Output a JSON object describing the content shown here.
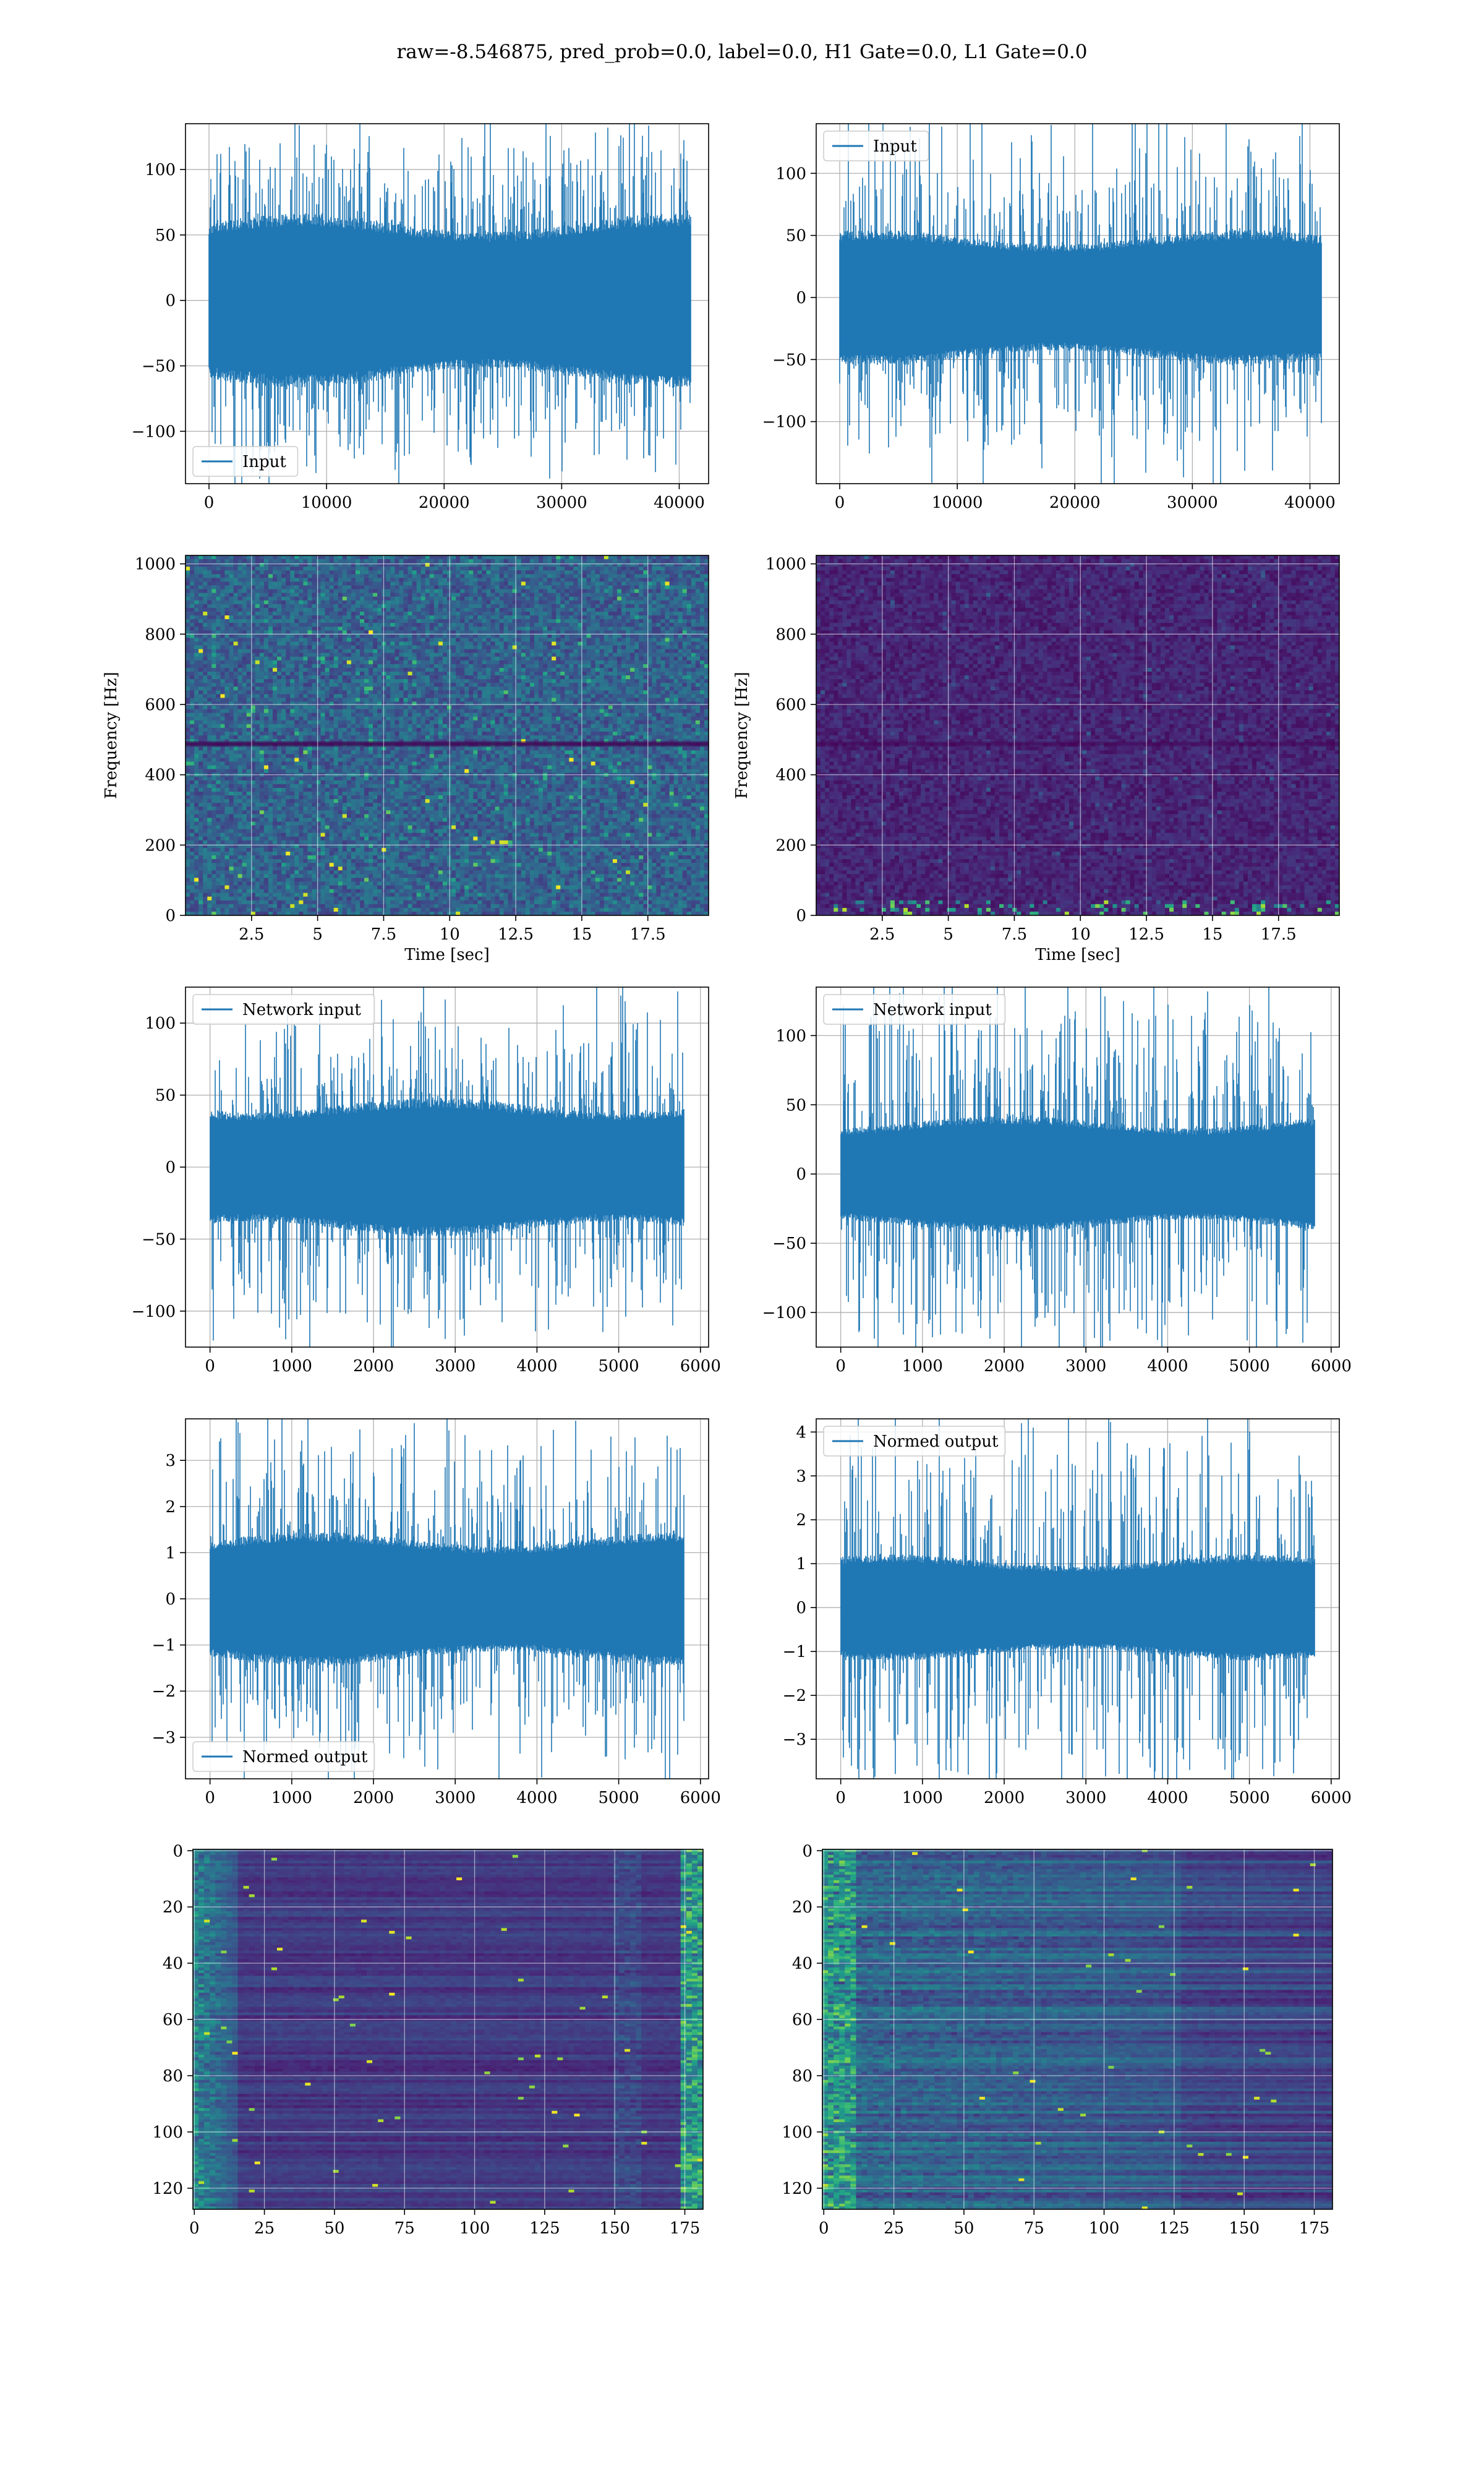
{
  "figure": {
    "title": "raw=-8.546875, pred_prob=0.0, label=0.0, H1 Gate=0.0, L1 Gate=0.0",
    "colors": {
      "line": "#1f77b4",
      "grid": "#b0b0b0",
      "axes": "#000000",
      "viridis": [
        "#440154",
        "#482878",
        "#3e4a89",
        "#31688e",
        "#26828e",
        "#1f9e89",
        "#35b779",
        "#6ece58",
        "#b5de2b",
        "#fde725"
      ]
    }
  },
  "chart_data": [
    {
      "id": "p1",
      "type": "line",
      "series": [
        {
          "name": "Input"
        }
      ],
      "legend_loc": "lower-left",
      "xlim": [
        -2000,
        42500
      ],
      "ylim": [
        -140,
        135
      ],
      "xticks": [
        0,
        10000,
        20000,
        30000,
        40000
      ],
      "yticks": [
        -100,
        -50,
        0,
        50,
        100
      ],
      "x_range": [
        0,
        41000
      ],
      "amplitude": {
        "band": 55,
        "peak": 120
      },
      "grid": true,
      "xlabel": "",
      "ylabel": ""
    },
    {
      "id": "p2",
      "type": "line",
      "series": [
        {
          "name": "Input"
        }
      ],
      "legend_loc": "upper-left",
      "xlim": [
        -2000,
        42500
      ],
      "ylim": [
        -150,
        140
      ],
      "xticks": [
        0,
        10000,
        20000,
        30000,
        40000
      ],
      "yticks": [
        -100,
        -50,
        0,
        50,
        100
      ],
      "x_range": [
        0,
        41000
      ],
      "amplitude": {
        "band": 45,
        "peak": 125
      },
      "grid": true,
      "xlabel": "",
      "ylabel": ""
    },
    {
      "id": "p3",
      "type": "heatmap",
      "variant": "spectrogram-bright",
      "xlim": [
        0,
        19.8
      ],
      "ylim": [
        0,
        1024
      ],
      "xticks": [
        2.5,
        5.0,
        7.5,
        10.0,
        12.5,
        15.0,
        17.5
      ],
      "yticks": [
        0,
        200,
        400,
        600,
        800,
        1000
      ],
      "xlabel": "Time [sec]",
      "ylabel": "Frequency [Hz]",
      "grid": true
    },
    {
      "id": "p4",
      "type": "heatmap",
      "variant": "spectrogram-dark",
      "xlim": [
        0,
        19.8
      ],
      "ylim": [
        0,
        1024
      ],
      "xticks": [
        2.5,
        5.0,
        7.5,
        10.0,
        12.5,
        15.0,
        17.5
      ],
      "yticks": [
        0,
        200,
        400,
        600,
        800,
        1000
      ],
      "xlabel": "Time [sec]",
      "ylabel": "Frequency [Hz]",
      "grid": true
    },
    {
      "id": "p5",
      "type": "line",
      "series": [
        {
          "name": "Network input"
        }
      ],
      "legend_loc": "upper-left",
      "xlim": [
        -300,
        6100
      ],
      "ylim": [
        -125,
        125
      ],
      "xticks": [
        0,
        1000,
        2000,
        3000,
        4000,
        5000,
        6000
      ],
      "yticks": [
        -100,
        -50,
        0,
        50,
        100
      ],
      "x_range": [
        0,
        5800
      ],
      "amplitude": {
        "band": 40,
        "peak": 105
      },
      "grid": true,
      "xlabel": "",
      "ylabel": ""
    },
    {
      "id": "p6",
      "type": "line",
      "series": [
        {
          "name": "Network input"
        }
      ],
      "legend_loc": "upper-left",
      "xlim": [
        -300,
        6100
      ],
      "ylim": [
        -125,
        135
      ],
      "xticks": [
        0,
        1000,
        2000,
        3000,
        4000,
        5000,
        6000
      ],
      "yticks": [
        -100,
        -50,
        0,
        50,
        100
      ],
      "x_range": [
        0,
        5800
      ],
      "amplitude": {
        "band": 35,
        "peak": 120
      },
      "grid": true,
      "xlabel": "",
      "ylabel": ""
    },
    {
      "id": "p7",
      "type": "line",
      "series": [
        {
          "name": "Normed output"
        }
      ],
      "legend_loc": "lower-left",
      "xlim": [
        -300,
        6100
      ],
      "ylim": [
        -3.9,
        3.9
      ],
      "xticks": [
        0,
        1000,
        2000,
        3000,
        4000,
        5000,
        6000
      ],
      "yticks": [
        -3,
        -2,
        -1,
        0,
        1,
        2,
        3
      ],
      "x_range": [
        0,
        5800
      ],
      "amplitude": {
        "band": 1.2,
        "peak": 3.4
      },
      "grid": true,
      "xlabel": "",
      "ylabel": ""
    },
    {
      "id": "p8",
      "type": "line",
      "series": [
        {
          "name": "Normed output"
        }
      ],
      "legend_loc": "upper-left",
      "xlim": [
        -300,
        6100
      ],
      "ylim": [
        -3.9,
        4.3
      ],
      "xticks": [
        0,
        1000,
        2000,
        3000,
        4000,
        5000,
        6000
      ],
      "yticks": [
        -3,
        -2,
        -1,
        0,
        1,
        2,
        3,
        4
      ],
      "x_range": [
        0,
        5800
      ],
      "amplitude": {
        "band": 1.0,
        "peak": 3.9
      },
      "grid": true,
      "xlabel": "",
      "ylabel": ""
    },
    {
      "id": "p9",
      "type": "heatmap",
      "variant": "features-left",
      "xlim": [
        -0.5,
        181.5
      ],
      "ylim": [
        127.5,
        -0.5
      ],
      "xticks": [
        0,
        25,
        50,
        75,
        100,
        125,
        150,
        175
      ],
      "yticks": [
        0,
        20,
        40,
        60,
        80,
        100,
        120
      ],
      "grid": true,
      "xlabel": "",
      "ylabel": ""
    },
    {
      "id": "p10",
      "type": "heatmap",
      "variant": "features-right",
      "xlim": [
        -0.5,
        181.5
      ],
      "ylim": [
        127.5,
        -0.5
      ],
      "xticks": [
        0,
        25,
        50,
        75,
        100,
        125,
        150,
        175
      ],
      "yticks": [
        0,
        20,
        40,
        60,
        80,
        100,
        120
      ],
      "grid": true,
      "xlabel": "",
      "ylabel": ""
    }
  ]
}
